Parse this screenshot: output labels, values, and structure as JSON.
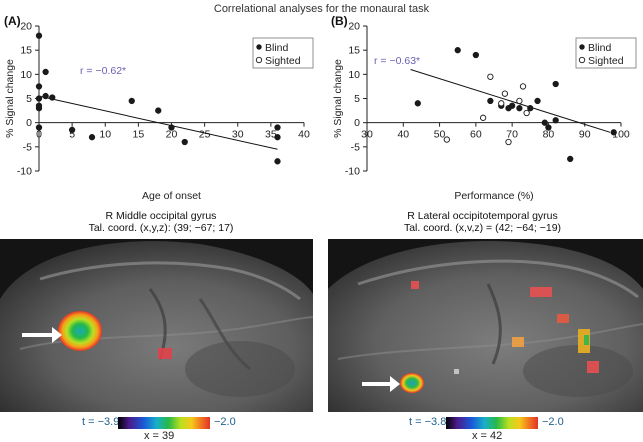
{
  "figure_title": "Correlational analyses for the monaural task",
  "panels": [
    {
      "letter": "(A)",
      "ylabel": "% Signal change",
      "xlabel": "Age of onset",
      "r_text": "r = −0.62*"
    },
    {
      "letter": "(B)",
      "ylabel": "% Signal change",
      "xlabel": "Performance (%)",
      "r_text": "r = −0.63*"
    }
  ],
  "legend": {
    "blind": "Blind",
    "sighted": "Sighted"
  },
  "brains": [
    {
      "region": "R Middle occipital gyrus",
      "coord": "Tal. coord. (x,y,z): (39; −67; 17)",
      "t_min": "t = −3.9",
      "t_max": "−2.0",
      "x_slice": "x = 39"
    },
    {
      "region": "R Lateral occipitotemporal gyrus",
      "coord": "Tal. coord. (x,v,z) = (42; −64; −19)",
      "t_min": "t = −3.8",
      "t_max": "−2.0",
      "x_slice": "x = 42"
    }
  ],
  "colors": {
    "r_text": "#6a5fb5",
    "t_text": "#1f5f8f",
    "points": "#1a1a1a",
    "arrow": "#ffffff"
  },
  "chart_data": [
    {
      "type": "scatter",
      "title": "",
      "xlabel": "Age of onset",
      "ylabel": "% Signal change",
      "xlim": [
        0,
        40
      ],
      "ylim": [
        -10,
        20
      ],
      "xticks": [
        0,
        5,
        10,
        15,
        20,
        25,
        30,
        35,
        40
      ],
      "yticks": [
        -10,
        -5,
        0,
        5,
        10,
        15,
        20
      ],
      "grid": false,
      "legend_position": "top-right",
      "annotation": "r = −0.62*",
      "series": [
        {
          "name": "Blind",
          "marker": "filled",
          "points": [
            [
              0,
              18
            ],
            [
              0,
              7.5
            ],
            [
              0,
              5
            ],
            [
              0,
              3.5
            ],
            [
              0,
              3
            ],
            [
              0,
              -1
            ],
            [
              1,
              5.5
            ],
            [
              1,
              10.5
            ],
            [
              2,
              5.2
            ],
            [
              5,
              -1.5
            ],
            [
              8,
              -3
            ],
            [
              14,
              4.5
            ],
            [
              18,
              2.5
            ],
            [
              20,
              -1
            ],
            [
              22,
              -4
            ],
            [
              36,
              -1
            ],
            [
              36,
              -3
            ],
            [
              36,
              -8
            ]
          ]
        },
        {
          "name": "Sighted",
          "marker": "open",
          "points": []
        }
      ],
      "fit_line": {
        "x": [
          0,
          36
        ],
        "y": [
          5.5,
          -5.5
        ]
      }
    },
    {
      "type": "scatter",
      "title": "",
      "xlabel": "Performance (%)",
      "ylabel": "% Signal change",
      "xlim": [
        30,
        100
      ],
      "ylim": [
        -10,
        20
      ],
      "xticks": [
        30,
        40,
        50,
        60,
        70,
        80,
        90,
        100
      ],
      "yticks": [
        -10,
        -5,
        0,
        5,
        10,
        15,
        20
      ],
      "grid": false,
      "legend_position": "top-right",
      "annotation": "r = −0.63*",
      "series": [
        {
          "name": "Blind",
          "marker": "filled",
          "points": [
            [
              44,
              4
            ],
            [
              55,
              15
            ],
            [
              60,
              14
            ],
            [
              64,
              4.5
            ],
            [
              67,
              3.5
            ],
            [
              69,
              3
            ],
            [
              70,
              3.5
            ],
            [
              72,
              3
            ],
            [
              75,
              3
            ],
            [
              77,
              4.5
            ],
            [
              79,
              0
            ],
            [
              80,
              -1
            ],
            [
              82,
              8
            ],
            [
              82,
              0.5
            ],
            [
              86,
              -7.5
            ],
            [
              98,
              -2
            ]
          ]
        },
        {
          "name": "Sighted",
          "marker": "open",
          "points": [
            [
              52,
              -3.5
            ],
            [
              62,
              1
            ],
            [
              64,
              9.5
            ],
            [
              67,
              4
            ],
            [
              68,
              6
            ],
            [
              69,
              -4
            ],
            [
              72,
              4.5
            ],
            [
              73,
              7.5
            ],
            [
              74,
              2
            ]
          ]
        }
      ],
      "fit_line": {
        "x": [
          42,
          97
        ],
        "y": [
          11,
          -2
        ]
      }
    }
  ]
}
